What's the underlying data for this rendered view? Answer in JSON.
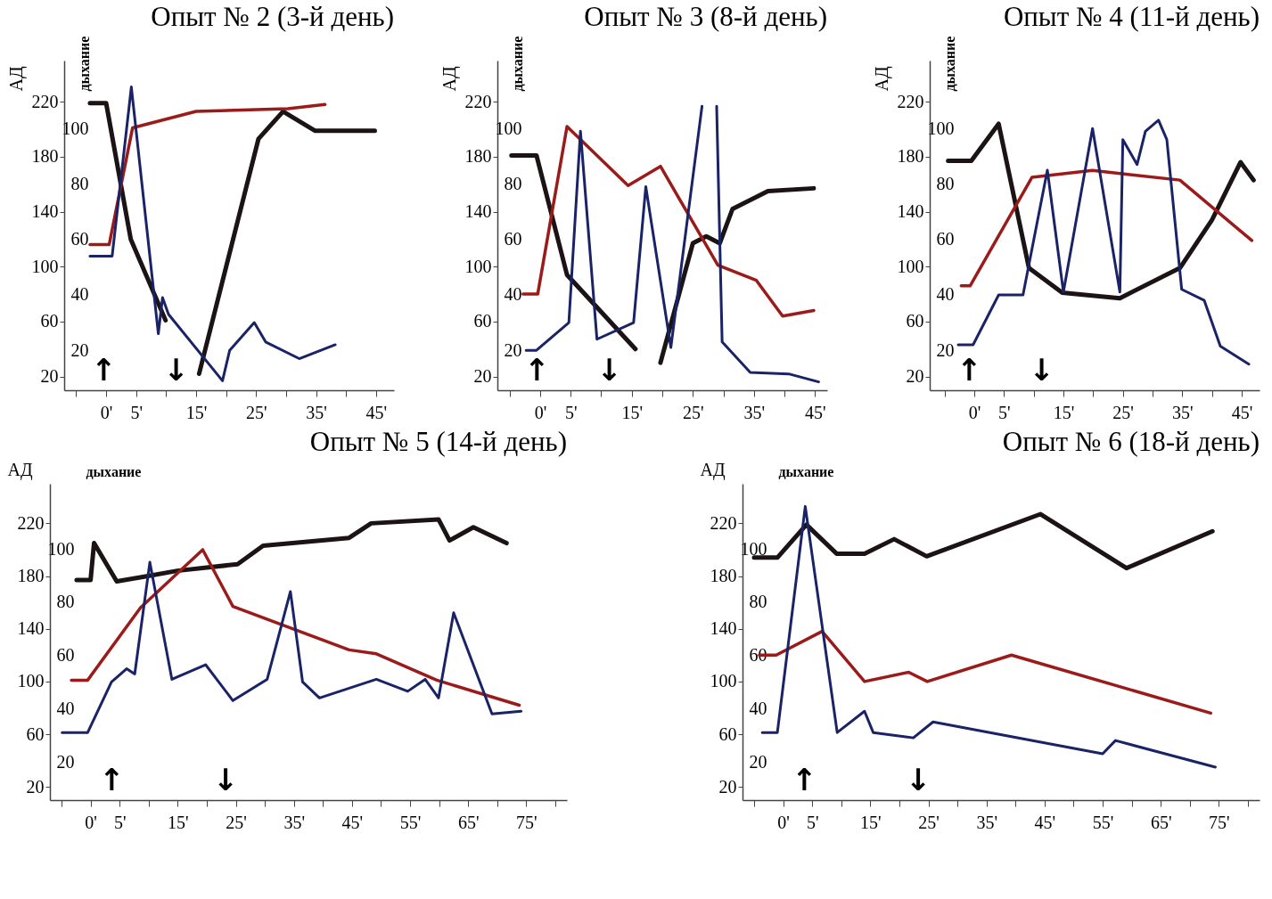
{
  "chart_data": [
    {
      "type": "line",
      "title": "Опыт № 2 (3-й день)",
      "ylabel": "АД",
      "y2label": "дыхание",
      "xlim": [
        -7,
        48
      ],
      "ylim": [
        10,
        250
      ],
      "y2lim": [
        5.6,
        124.5
      ],
      "xticks": [
        {
          "value": -5,
          "label": null
        },
        {
          "value": 0,
          "label": "0'"
        },
        {
          "value": 5,
          "label": "5'"
        },
        {
          "value": 10,
          "label": null
        },
        {
          "value": 15,
          "label": "15'"
        },
        {
          "value": 20,
          "label": null
        },
        {
          "value": 25,
          "label": "25'"
        },
        {
          "value": 30,
          "label": null
        },
        {
          "value": 35,
          "label": "35'"
        },
        {
          "value": 40,
          "label": null
        },
        {
          "value": 45,
          "label": "45'"
        }
      ],
      "yticks": [
        20,
        60,
        100,
        140,
        180,
        220
      ],
      "y2ticks": [
        20,
        40,
        60,
        80,
        100
      ],
      "series": [
        {
          "color": "#1c1414",
          "x": [
            -2.7,
            0,
            4.1,
            9.9,
            12.5,
            15.5,
            25.4,
            29.5,
            34.8,
            44.8
          ],
          "values": [
            219,
            219,
            120,
            61,
            null,
            22,
            193,
            213,
            199,
            199
          ]
        },
        {
          "color": "#9b1b1b",
          "x": [
            -2.7,
            0.5,
            4.4,
            15,
            30.3,
            36.5
          ],
          "values": [
            116,
            116,
            201,
            213,
            215,
            218
          ]
        },
        {
          "color": "#1a2366",
          "axis": "y2",
          "x": [
            -2.7,
            1,
            4.2,
            8.7,
            9.4,
            10.4,
            19.4,
            20.6,
            24.7,
            26.6,
            32.2,
            38.2
          ],
          "values": [
            54,
            54,
            115,
            26,
            39,
            33,
            9,
            20,
            30,
            23,
            17,
            22
          ]
        }
      ],
      "annotations": [
        "↑",
        "↓"
      ]
    },
    {
      "type": "line",
      "title": "Опыт № 3 (8-й день)",
      "ylabel": "АД",
      "y2label": "дыхание",
      "xlim": [
        -7,
        47
      ],
      "ylim": [
        10,
        250
      ],
      "y2lim": [
        5.6,
        124.5
      ],
      "xticks": [
        {
          "value": -5,
          "label": null
        },
        {
          "value": 0,
          "label": "0'"
        },
        {
          "value": 5,
          "label": "5'"
        },
        {
          "value": 10,
          "label": null
        },
        {
          "value": 15,
          "label": "15'"
        },
        {
          "value": 20,
          "label": null
        },
        {
          "value": 25,
          "label": "25'"
        },
        {
          "value": 30,
          "label": null
        },
        {
          "value": 35,
          "label": "35'"
        },
        {
          "value": 40,
          "label": null
        },
        {
          "value": 45,
          "label": "45'"
        }
      ],
      "yticks": [
        20,
        60,
        100,
        140,
        180,
        220
      ],
      "y2ticks": [
        20,
        40,
        60,
        80,
        100
      ],
      "series": [
        {
          "color": "#1c1414",
          "x": [
            -4.7,
            -0.6,
            4.4,
            15.6,
            17.5,
            19.7,
            25,
            27.2,
            29.4,
            31.5,
            37.3,
            44.8
          ],
          "values": [
            181,
            181,
            94,
            40,
            null,
            30,
            117,
            122,
            117,
            142,
            155,
            157
          ]
        },
        {
          "color": "#9b1b1b",
          "x": [
            -2.8,
            -0.4,
            4.4,
            14.4,
            19.7,
            29.1,
            35.4,
            39.7,
            44.8
          ],
          "values": [
            80,
            80,
            202,
            159,
            173,
            101,
            90,
            64,
            68
          ]
        },
        {
          "color": "#1a2366",
          "axis": "y2",
          "x": [
            -2.3,
            -0.6,
            4.7,
            6.6,
            9.3,
            15.3,
            17.3,
            21.4,
            26.5,
            27.7,
            28.9,
            29.8,
            34.4,
            40.7,
            45.6
          ],
          "values": [
            20,
            20,
            30,
            99,
            24,
            30,
            79,
            21,
            108,
            null,
            108,
            23,
            12,
            11.5,
            8.6
          ]
        }
      ],
      "annotations": [
        "↑",
        "↓"
      ]
    },
    {
      "type": "line",
      "title": "Опыт № 4 (11-й день)",
      "ylabel": "АД",
      "y2label": "дыхание",
      "xlim": [
        -7.5,
        48
      ],
      "ylim": [
        10,
        250
      ],
      "y2lim": [
        5.6,
        124.5
      ],
      "xticks": [
        {
          "value": -5,
          "label": null
        },
        {
          "value": 0,
          "label": "0'"
        },
        {
          "value": 5,
          "label": "5'"
        },
        {
          "value": 10,
          "label": null
        },
        {
          "value": 15,
          "label": "15'"
        },
        {
          "value": 20,
          "label": null
        },
        {
          "value": 25,
          "label": "25'"
        },
        {
          "value": 30,
          "label": null
        },
        {
          "value": 35,
          "label": "35'"
        },
        {
          "value": 40,
          "label": null
        },
        {
          "value": 45,
          "label": "45'"
        }
      ],
      "yticks": [
        20,
        60,
        100,
        140,
        180,
        220
      ],
      "y2ticks": [
        20,
        40,
        60,
        80,
        100
      ],
      "series": [
        {
          "color": "#1c1414",
          "x": [
            -4.4,
            -0.5,
            4.1,
            9.2,
            14.8,
            24.5,
            34.6,
            40,
            44.8,
            47
          ],
          "values": [
            177,
            177,
            204,
            99,
            81,
            77,
            99,
            134,
            176,
            163
          ]
        },
        {
          "color": "#9b1b1b",
          "x": [
            -2.2,
            -0.7,
            9.7,
            19.9,
            34.6,
            46.7
          ],
          "values": [
            86,
            86,
            165,
            170,
            163,
            119
          ]
        },
        {
          "color": "#1a2366",
          "axis": "y2",
          "x": [
            -2.7,
            -0.2,
            4.1,
            8.2,
            12.3,
            15,
            19.9,
            24.5,
            25,
            27.4,
            28.8,
            31,
            32.4,
            34.9,
            38.7,
            41.4,
            46.2
          ],
          "values": [
            22,
            22,
            40,
            40,
            85,
            41,
            100,
            41,
            96,
            87,
            99,
            103,
            96,
            42,
            38,
            21.5,
            15
          ]
        }
      ],
      "annotations": [
        "↑",
        "↓"
      ]
    },
    {
      "type": "line",
      "title": "Опыт № 5 (14-й день)",
      "ylabel": "АД",
      "y2label": "дыхание",
      "xlim": [
        -7,
        82
      ],
      "ylim": [
        10,
        250
      ],
      "y2lim": [
        5.6,
        124.5
      ],
      "xticks": [
        {
          "value": -5,
          "label": null
        },
        {
          "value": 0,
          "label": "0'"
        },
        {
          "value": 5,
          "label": "5'"
        },
        {
          "value": 10,
          "label": null
        },
        {
          "value": 15,
          "label": "15'"
        },
        {
          "value": 20,
          "label": null
        },
        {
          "value": 25,
          "label": "25'"
        },
        {
          "value": 30,
          "label": null
        },
        {
          "value": 35,
          "label": "35'"
        },
        {
          "value": 40,
          "label": null
        },
        {
          "value": 45,
          "label": "45'"
        },
        {
          "value": 50,
          "label": null
        },
        {
          "value": 55,
          "label": "55'"
        },
        {
          "value": 60,
          "label": null
        },
        {
          "value": 65,
          "label": "65'"
        },
        {
          "value": 70,
          "label": null
        },
        {
          "value": 75,
          "label": "75'"
        },
        {
          "value": 80,
          "label": null
        }
      ],
      "yticks": [
        20,
        60,
        100,
        140,
        180,
        220
      ],
      "y2ticks": [
        20,
        40,
        60,
        80,
        100
      ],
      "series": [
        {
          "color": "#1c1414",
          "x": [
            -2.4,
            0,
            0.6,
            4.5,
            9.9,
            14.9,
            25.3,
            29.7,
            44.5,
            48.3,
            59.9,
            61.8,
            65.9,
            71.6
          ],
          "values": [
            177,
            177,
            205,
            176,
            180,
            184,
            189,
            203,
            209,
            220,
            223,
            207,
            217,
            205
          ]
        },
        {
          "color": "#9b1b1b",
          "x": [
            -3.3,
            -0.5,
            8.6,
            19.3,
            24.5,
            44.5,
            49.2,
            59.6,
            73.8
          ],
          "values": [
            101,
            101,
            156,
            200,
            157,
            124,
            121,
            101,
            82
          ]
        },
        {
          "color": "#1a2366",
          "axis": "y2",
          "x": [
            -4.9,
            -0.5,
            3.6,
            6.2,
            7.6,
            10.2,
            14,
            19.8,
            24.5,
            30.4,
            34.4,
            36.5,
            39.4,
            49.2,
            54.6,
            57.6,
            59.9,
            62.5,
            69.1,
            74.1
          ],
          "values": [
            31,
            31,
            50,
            55,
            53,
            95,
            51,
            56.5,
            43,
            51,
            84,
            50,
            44,
            51,
            46.5,
            51,
            44,
            76,
            38,
            39
          ]
        }
      ],
      "annotations": [
        "↑",
        "↓"
      ]
    },
    {
      "type": "line",
      "title": "Опыт № 6 (18-й день)",
      "ylabel": "АД",
      "y2label": "дыхание",
      "xlim": [
        -7,
        82
      ],
      "ylim": [
        10,
        250
      ],
      "y2lim": [
        5.6,
        124.5
      ],
      "xticks": [
        {
          "value": -5,
          "label": null
        },
        {
          "value": 0,
          "label": "0'"
        },
        {
          "value": 5,
          "label": "5'"
        },
        {
          "value": 10,
          "label": null
        },
        {
          "value": 15,
          "label": "15'"
        },
        {
          "value": 20,
          "label": null
        },
        {
          "value": 25,
          "label": "25'"
        },
        {
          "value": 30,
          "label": null
        },
        {
          "value": 35,
          "label": "35'"
        },
        {
          "value": 40,
          "label": null
        },
        {
          "value": 45,
          "label": "45'"
        },
        {
          "value": 50,
          "label": null
        },
        {
          "value": 55,
          "label": "55'"
        },
        {
          "value": 60,
          "label": null
        },
        {
          "value": 65,
          "label": "65'"
        },
        {
          "value": 70,
          "label": null
        },
        {
          "value": 75,
          "label": "75'"
        },
        {
          "value": 80,
          "label": null
        }
      ],
      "yticks": [
        20,
        60,
        100,
        140,
        180,
        220
      ],
      "y2ticks": [
        20,
        40,
        60,
        80,
        100
      ],
      "series": [
        {
          "color": "#1c1414",
          "x": [
            -5,
            -1,
            4,
            9.2,
            14,
            19.1,
            24.7,
            44.3,
            59.1,
            73.9
          ],
          "values": [
            194,
            194,
            219,
            197,
            197,
            208,
            195,
            227,
            186,
            214
          ]
        },
        {
          "color": "#9b1b1b",
          "x": [
            -4.1,
            -1.2,
            6.7,
            14,
            21.6,
            24.8,
            39.3,
            73.6
          ],
          "values": [
            120,
            120,
            138,
            100,
            107,
            100,
            120,
            76
          ]
        },
        {
          "color": "#1a2366",
          "axis": "y2",
          "x": [
            -3.6,
            -1,
            3.8,
            9.3,
            14,
            15.5,
            22.4,
            25.8,
            55,
            57.2,
            74.4
          ],
          "values": [
            31,
            31,
            116,
            31,
            39,
            31,
            29,
            35,
            23,
            28,
            18
          ]
        }
      ],
      "annotations": [
        "↑",
        "↓"
      ]
    }
  ]
}
